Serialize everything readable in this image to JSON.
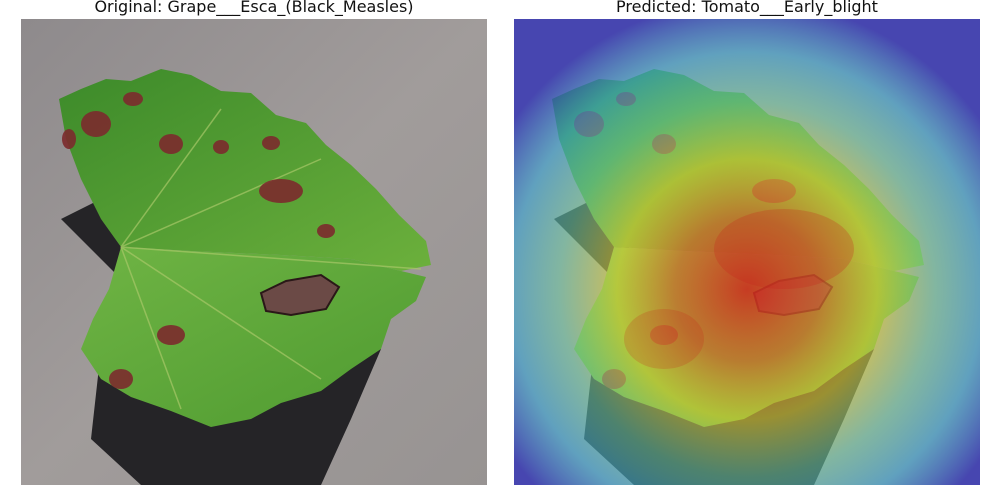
{
  "panels": {
    "original": {
      "title": "Original: Grape___Esca_(Black_Measles)"
    },
    "predicted": {
      "title": "Predicted: Tomato___Early_blight"
    }
  },
  "colors": {
    "background_surface": "#8f8a8a",
    "leaf_green": "#4f9a33",
    "leaf_dark": "#2f6e22",
    "lesion": "#7a2a2a",
    "shadow": "#1e1c1f",
    "heat_low": "#2b2bb8",
    "heat_mid": "#3fc4d8",
    "heat_high": "#e8d83a",
    "heat_peak": "#d8281e"
  }
}
